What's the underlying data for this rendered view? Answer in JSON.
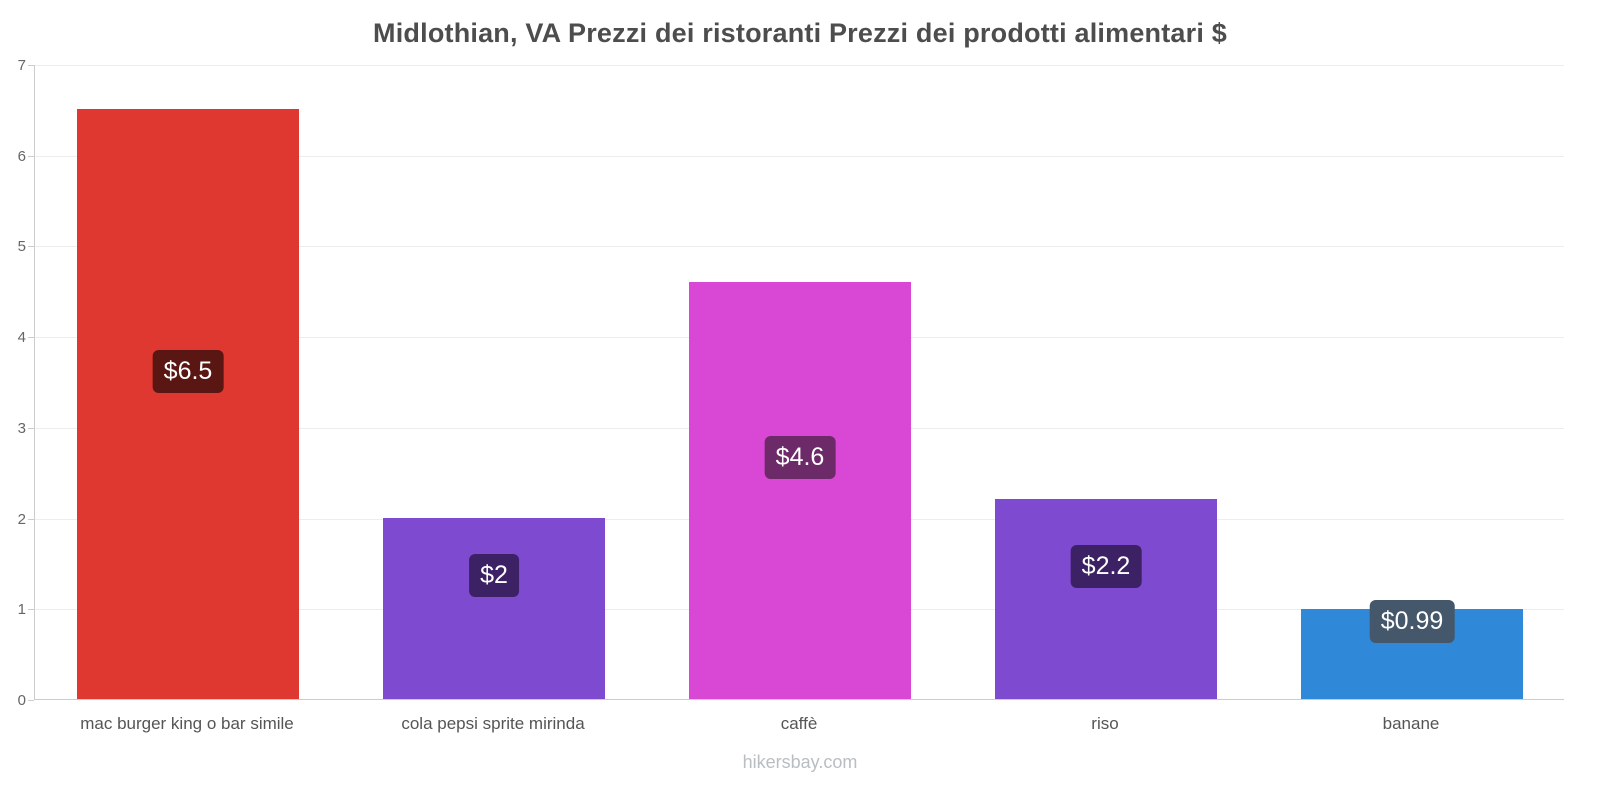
{
  "footer": "hikersbay.com",
  "chart_data": {
    "type": "bar",
    "title": "Midlothian, VA Prezzi dei ristoranti Prezzi dei prodotti alimentari $",
    "categories": [
      "mac burger king o bar simile",
      "cola pepsi sprite mirinda",
      "caffè",
      "riso",
      "banane"
    ],
    "values": [
      6.5,
      2,
      4.6,
      2.2,
      0.99
    ],
    "value_labels": [
      "$6.5",
      "$2",
      "$4.6",
      "$2.2",
      "$0.99"
    ],
    "bar_colors": [
      "#df3831",
      "#7e4bd0",
      "#d948d4",
      "#7e4bd0",
      "#2f89d8"
    ],
    "value_label_bg": [
      "#5a1613",
      "#3c2164",
      "#6d2a68",
      "#3c2164",
      "#45576b"
    ],
    "xlabel": "",
    "ylabel": "",
    "ylim": [
      0,
      7
    ],
    "yticks": [
      0,
      1,
      2,
      3,
      4,
      5,
      6,
      7
    ],
    "grid": true,
    "legend": false,
    "axis_color": "#cccccc",
    "grid_color": "#ededed"
  }
}
